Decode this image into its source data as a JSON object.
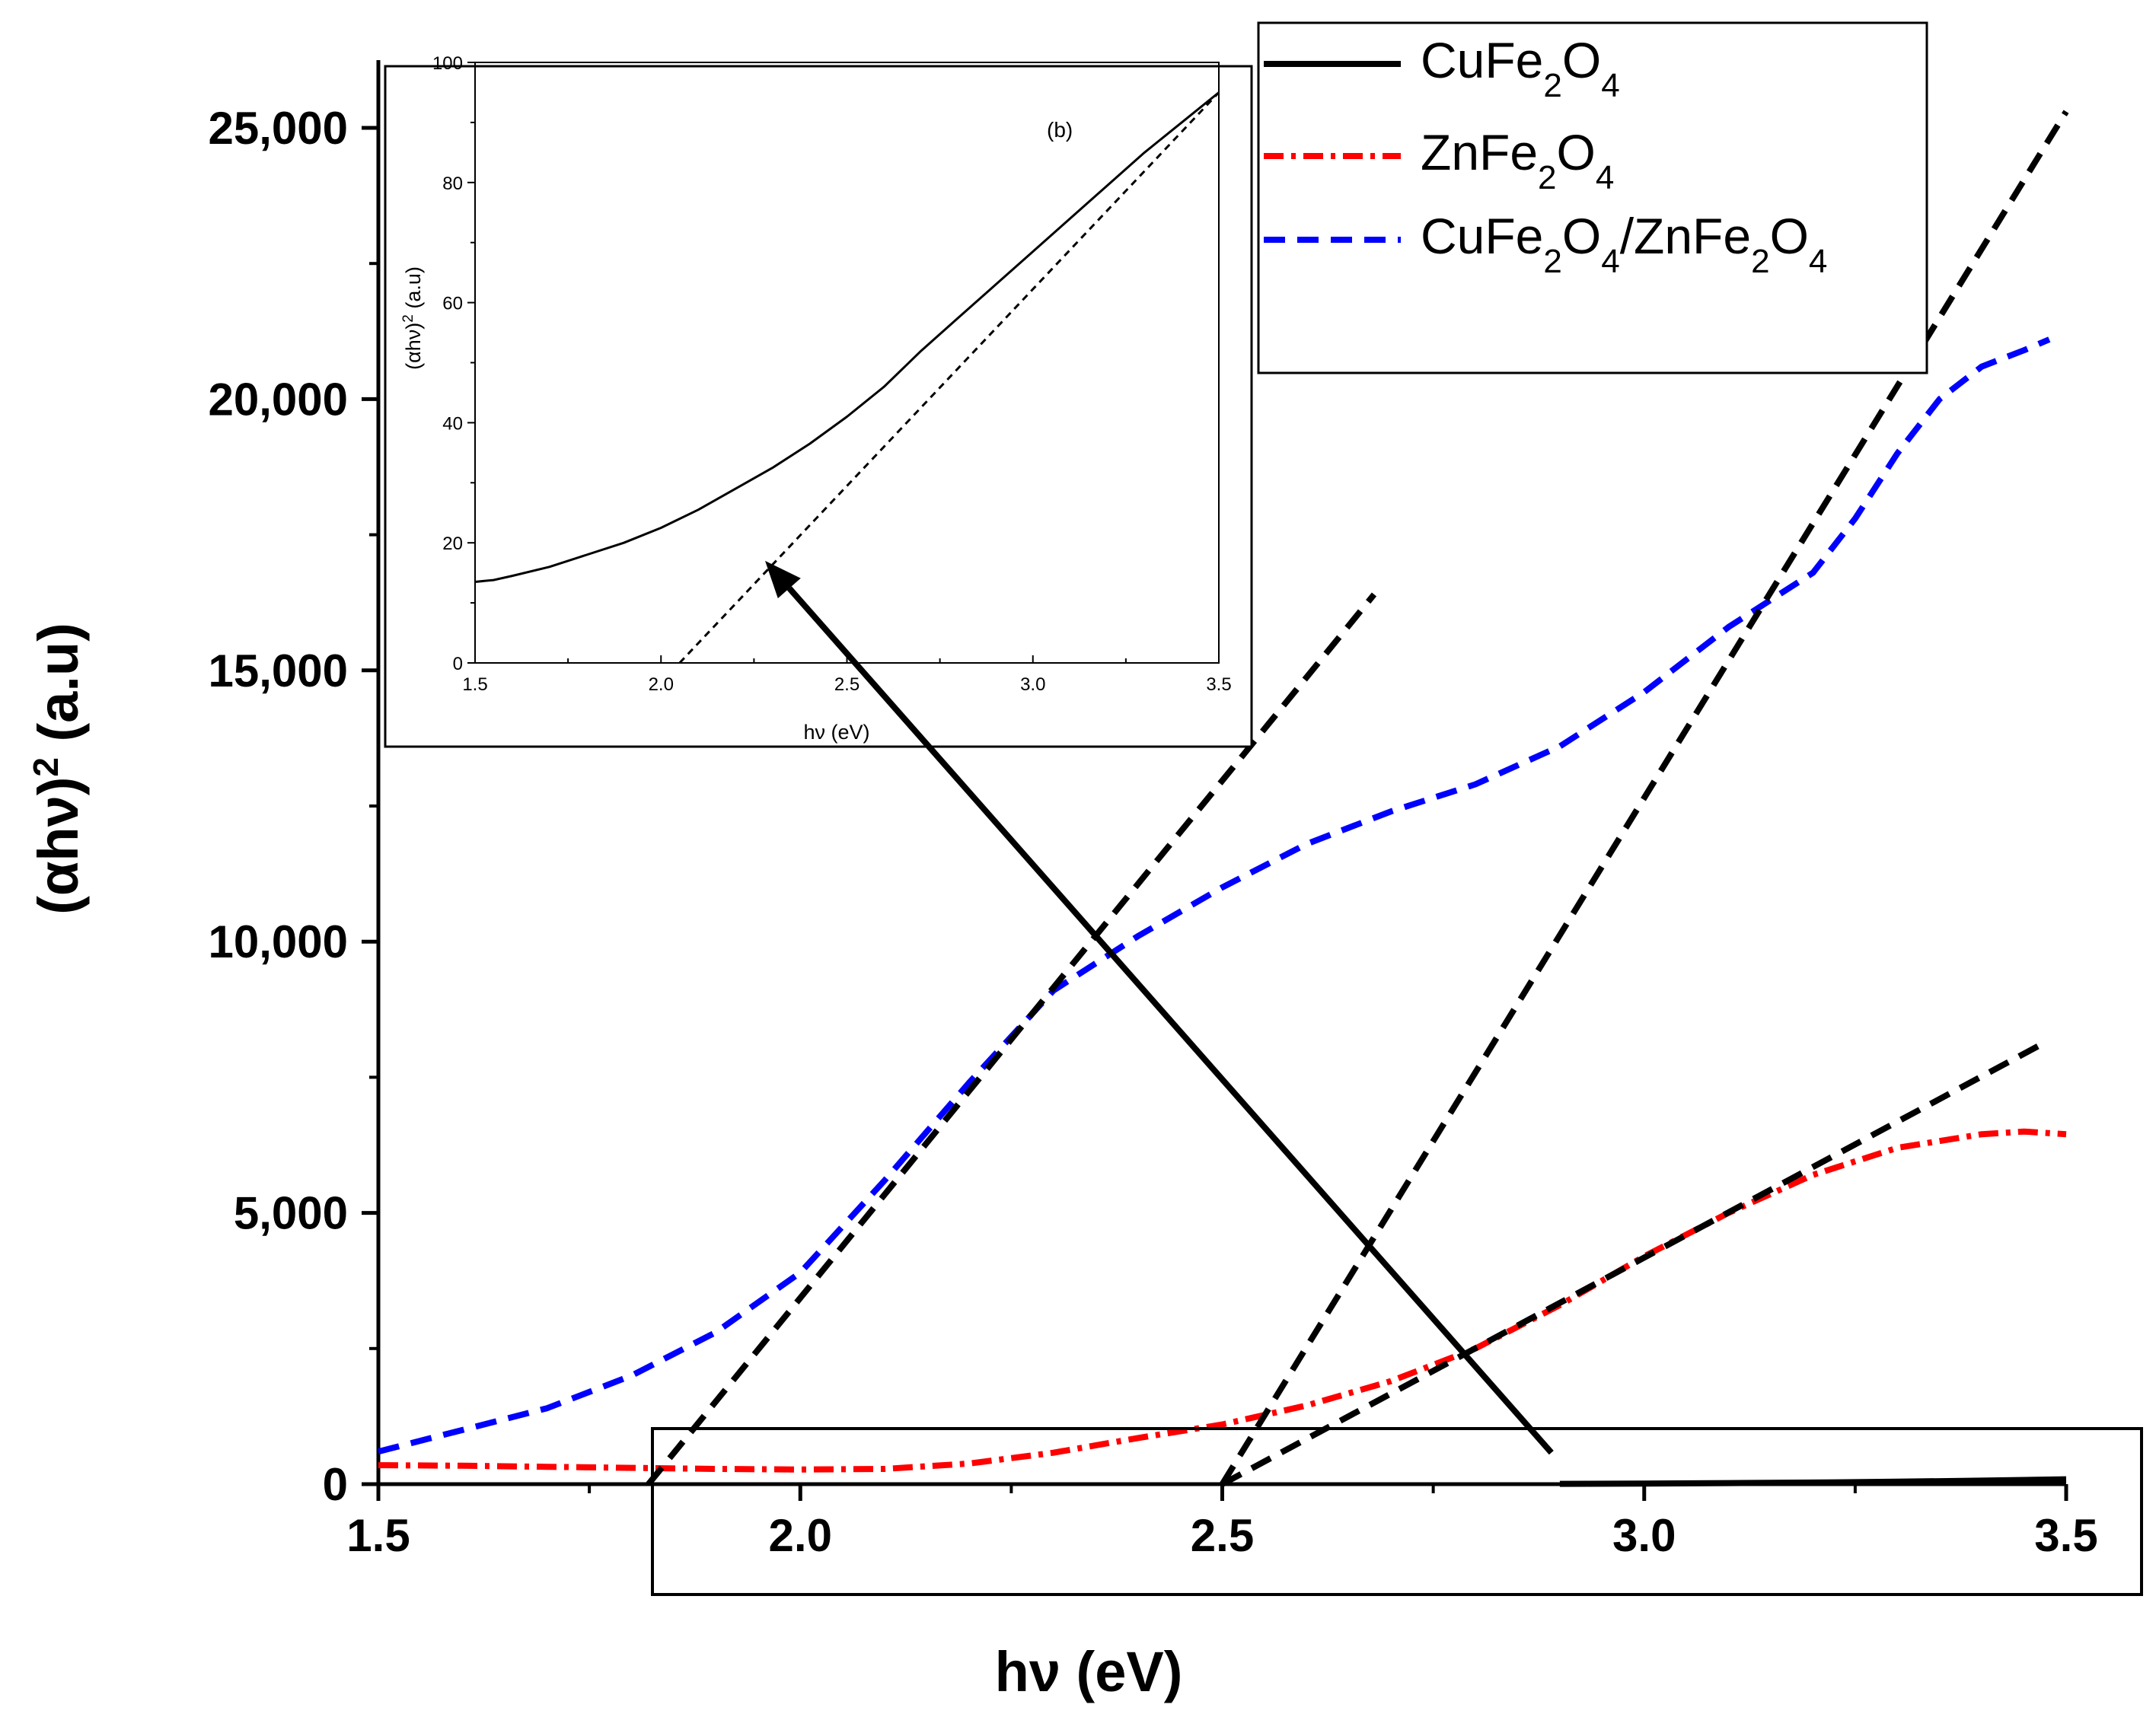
{
  "chart_data": [
    {
      "name": "main",
      "type": "line",
      "title": "",
      "xlabel": "hν (eV)",
      "ylabel": "(αhν)² (a.u)",
      "xlim": [
        1.5,
        3.5
      ],
      "ylim": [
        0,
        25000
      ],
      "x_ticks": [
        1.5,
        2.0,
        2.5,
        3.0,
        3.5
      ],
      "x_tick_labels": [
        "1.5",
        "2.0",
        "2.5",
        "3.0",
        "3.5"
      ],
      "y_ticks": [
        0,
        5000,
        10000,
        15000,
        20000,
        25000
      ],
      "y_tick_labels": [
        "0",
        "5,000",
        "10,000",
        "15,000",
        "20,000",
        "25,000"
      ],
      "grid": false,
      "legend_position": "top-right",
      "series": [
        {
          "name": "CuFe2O4",
          "legend_parts": [
            [
              "CuFe",
              ""
            ],
            [
              "2",
              "sub"
            ],
            [
              "O",
              ""
            ],
            [
              "4",
              "sub"
            ]
          ],
          "color": "#000000",
          "style": "solid",
          "x": [
            2.9,
            3.0,
            3.1,
            3.2,
            3.3,
            3.4,
            3.5
          ],
          "y": [
            5,
            10,
            20,
            30,
            45,
            65,
            90
          ]
        },
        {
          "name": "ZnFe2O4",
          "legend_parts": [
            [
              "ZnFe",
              ""
            ],
            [
              "2",
              "sub"
            ],
            [
              "O",
              ""
            ],
            [
              "4",
              "sub"
            ]
          ],
          "color": "#ff0000",
          "style": "dashdot",
          "x": [
            1.5,
            1.6,
            1.7,
            1.8,
            1.9,
            2.0,
            2.1,
            2.2,
            2.3,
            2.4,
            2.5,
            2.6,
            2.7,
            2.8,
            2.9,
            3.0,
            3.1,
            3.2,
            3.3,
            3.4,
            3.45,
            3.5
          ],
          "y": [
            350,
            340,
            320,
            300,
            280,
            270,
            280,
            380,
            580,
            850,
            1100,
            1450,
            1900,
            2500,
            3300,
            4200,
            5000,
            5700,
            6200,
            6450,
            6500,
            6450
          ]
        },
        {
          "name": "CuFe2O4/ZnFe2O4",
          "legend_parts": [
            [
              "CuFe",
              ""
            ],
            [
              "2",
              "sub"
            ],
            [
              "O",
              ""
            ],
            [
              "4",
              "sub"
            ],
            [
              "/ZnFe",
              ""
            ],
            [
              "2",
              "sub"
            ],
            [
              "O",
              ""
            ],
            [
              "4",
              "sub"
            ]
          ],
          "color": "#0000ff",
          "style": "dash",
          "x": [
            1.5,
            1.6,
            1.7,
            1.8,
            1.9,
            2.0,
            2.1,
            2.2,
            2.3,
            2.4,
            2.5,
            2.6,
            2.7,
            2.8,
            2.9,
            3.0,
            3.1,
            3.2,
            3.25,
            3.3,
            3.35,
            3.4,
            3.45,
            3.48
          ],
          "y": [
            600,
            1000,
            1400,
            2000,
            2800,
            3900,
            5600,
            7400,
            9100,
            10100,
            11000,
            11800,
            12400,
            12900,
            13600,
            14600,
            15800,
            16800,
            17800,
            19000,
            20000,
            20600,
            20900,
            21100
          ]
        }
      ],
      "tangent_lines": [
        {
          "name": "tangent-blue",
          "color": "#000000",
          "style": "dash",
          "x": [
            1.82,
            2.68
          ],
          "y": [
            0,
            16400
          ]
        },
        {
          "name": "tangent-black",
          "color": "#000000",
          "style": "dash",
          "x": [
            2.5,
            3.5
          ],
          "y": [
            0,
            25300
          ]
        },
        {
          "name": "tangent-red",
          "color": "#000000",
          "style": "dash",
          "x": [
            2.5,
            3.47
          ],
          "y": [
            0,
            8100
          ]
        }
      ],
      "arrow": {
        "from": [
          2.89,
          580
        ],
        "to": "inset data point (2.28, 17)"
      }
    },
    {
      "name": "inset",
      "type": "line",
      "title": "",
      "xlabel": "hν (eV)",
      "ylabel": "(αhν)² (a.u)",
      "ylabel_parts": [
        [
          "(αhν)",
          ""
        ],
        [
          "2",
          "sup"
        ],
        [
          " (a.u)",
          ""
        ]
      ],
      "annotation": "(b)",
      "xlim": [
        1.5,
        3.5
      ],
      "ylim": [
        0,
        100
      ],
      "x_ticks": [
        1.5,
        2.0,
        2.5,
        3.0,
        3.5
      ],
      "x_tick_labels": [
        "1.5",
        "2.0",
        "2.5",
        "3.0",
        "3.5"
      ],
      "y_ticks": [
        0,
        20,
        40,
        60,
        80,
        100
      ],
      "y_tick_labels": [
        "0",
        "20",
        "40",
        "60",
        "80",
        "100"
      ],
      "series": [
        {
          "name": "CuFe2O4",
          "color": "#000000",
          "style": "solid",
          "x": [
            1.5,
            1.55,
            1.6,
            1.7,
            1.8,
            1.9,
            2.0,
            2.1,
            2.2,
            2.3,
            2.4,
            2.5,
            2.6,
            2.7,
            2.8,
            2.9,
            3.0,
            3.1,
            3.2,
            3.3,
            3.4,
            3.5
          ],
          "y": [
            13.5,
            13.8,
            14.5,
            16,
            18,
            20,
            22.5,
            25.5,
            29,
            32.5,
            36.5,
            41,
            46,
            52,
            57.5,
            63,
            68.5,
            74,
            79.5,
            85,
            90,
            95
          ]
        }
      ],
      "tangent_lines": [
        {
          "name": "inset-tangent",
          "color": "#000000",
          "style": "dash",
          "x": [
            2.05,
            3.5
          ],
          "y": [
            0,
            95
          ]
        }
      ]
    }
  ],
  "main_labels": {
    "xlabel": "hν (eV)",
    "ylabel_prefix": "(αhν)",
    "ylabel_sup": "2",
    "ylabel_suffix": " (a.u)"
  },
  "inset_labels": {
    "xlabel": "hν (eV)",
    "annotation": "(b)"
  }
}
